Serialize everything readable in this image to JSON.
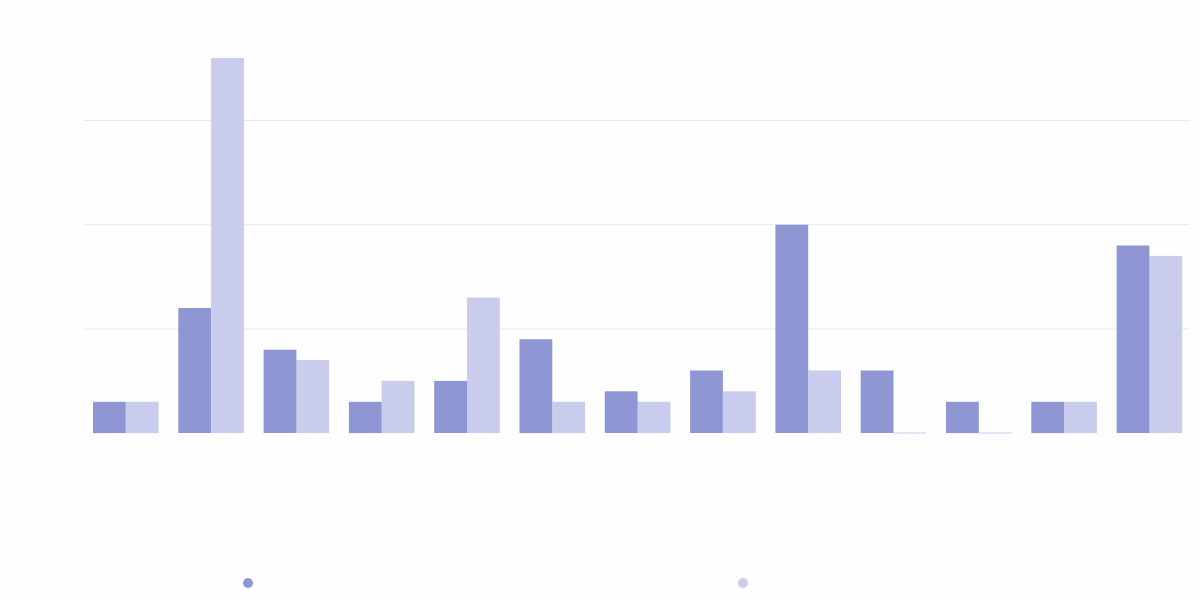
{
  "chart_data": {
    "type": "bar",
    "title": "",
    "xlabel": "",
    "ylabel": "",
    "ylim": [
      0,
      36
    ],
    "grid": true,
    "legend_position": "bottom",
    "colors": {
      "series_1": "#8f96d4",
      "series_2": "#c9cced",
      "grid": "#e8e9f6",
      "background": "#fefefe"
    },
    "categories": [
      "",
      "",
      "",
      "",
      "",
      "",
      "",
      "",
      "",
      "",
      "",
      "",
      ""
    ],
    "series": [
      {
        "name": "",
        "color": "#8f96d4",
        "values": [
          3,
          12,
          8,
          3,
          5,
          9,
          4,
          6,
          20,
          6,
          3,
          3,
          18
        ]
      },
      {
        "name": "",
        "color": "#c9cced",
        "values": [
          3,
          36,
          7,
          5,
          13,
          3,
          3,
          4,
          6,
          0,
          0,
          3,
          17
        ]
      }
    ]
  }
}
